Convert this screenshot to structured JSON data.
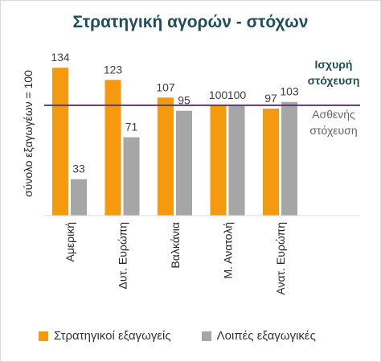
{
  "chart_data": {
    "type": "bar",
    "title": "Στρατηγική αγορών - στόχων",
    "ylabel": "σύνολο εξαγωγέων = 100",
    "xlabel": "",
    "ylim": [
      0,
      140
    ],
    "categories": [
      "Αμερική",
      "Δυτ. Ευρώπη",
      "Βαλκάνια",
      "Μ. Ανατολή",
      "Ανατ. Ευρώπη"
    ],
    "series": [
      {
        "name": "Στρατηγικοί εξαγωγείς",
        "values": [
          134,
          123,
          107,
          100,
          97
        ],
        "color": "#f59a0f"
      },
      {
        "name": "Λοιπές εξαγωγικές",
        "values": [
          33,
          71,
          95,
          100,
          103
        ],
        "color": "#a6a6a6"
      }
    ],
    "reference_line": {
      "value": 100,
      "color": "#5b3a6e"
    },
    "annotations": [
      {
        "text_lines": [
          "Ισχυρή",
          "στόχευση"
        ],
        "color": "#1f4e5a",
        "bold": true
      },
      {
        "text_lines": [
          "Ασθενής",
          "στόχευση"
        ],
        "color": "#666666",
        "bold": false
      }
    ],
    "grid": false,
    "legend_position": "bottom"
  }
}
